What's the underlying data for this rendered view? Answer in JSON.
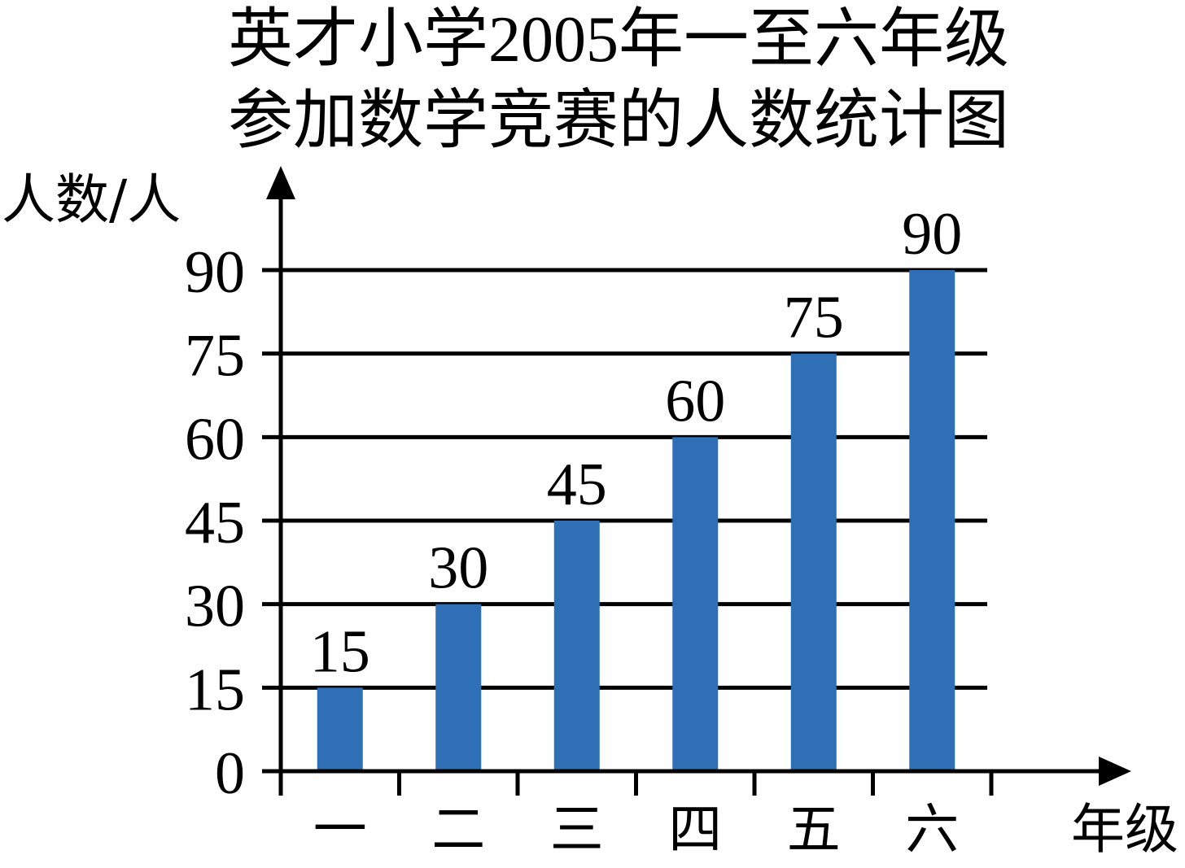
{
  "chart_data": {
    "type": "bar",
    "title": "英才小学2005年一至六年级",
    "subtitle": "参加数学竞赛的人数统计图",
    "xlabel": "年级",
    "ylabel": "人数/人",
    "categories": [
      "一",
      "二",
      "三",
      "四",
      "五",
      "六"
    ],
    "values": [
      15,
      30,
      45,
      60,
      75,
      90
    ],
    "data_labels": [
      "15",
      "30",
      "45",
      "60",
      "75",
      "90"
    ],
    "ylim": [
      0,
      90
    ],
    "yticks": [
      0,
      15,
      30,
      45,
      60,
      75,
      90
    ],
    "ytick_labels": [
      "0",
      "15",
      "30",
      "45",
      "60",
      "75",
      "90"
    ],
    "grid": true,
    "legend": "none",
    "colors": {
      "bar": "#2e6fb5",
      "grid": "#000000",
      "axis": "#000000"
    }
  }
}
